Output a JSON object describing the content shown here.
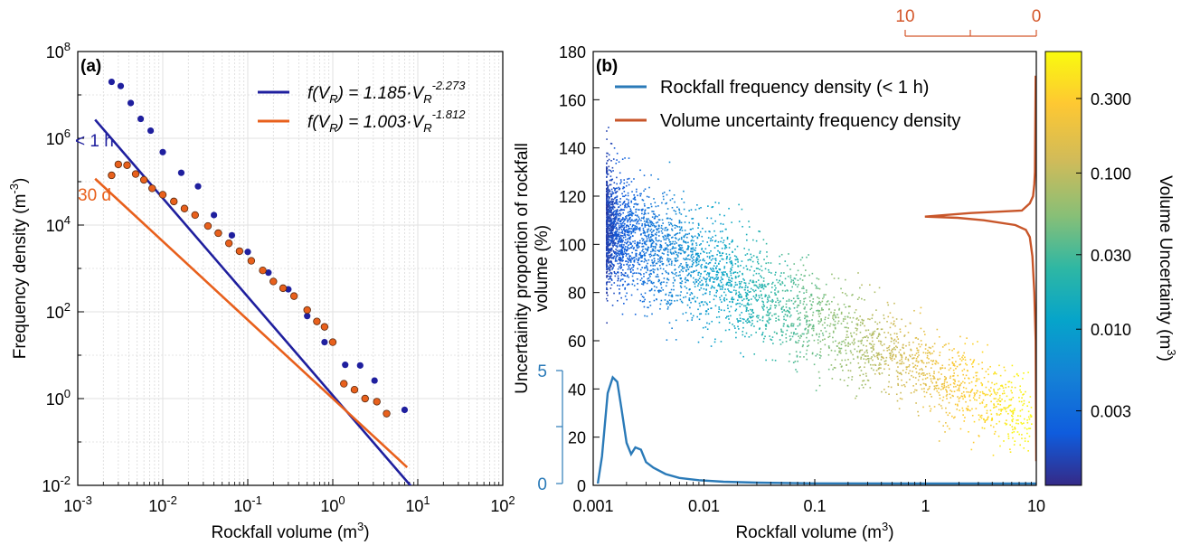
{
  "chart_data": [
    {
      "type": "scatter",
      "panel_label": "(a)",
      "xlabel": "Rockfall volume (m",
      "xlabel_sup": "3",
      "xlabel_end": ")",
      "ylabel": "Frequency density (m",
      "ylabel_sup": "-3",
      "ylabel_end": ")",
      "x_scale": "log",
      "y_scale": "log",
      "xlim": [
        0.001,
        100
      ],
      "ylim": [
        0.01,
        100000000
      ],
      "x_ticks": [
        {
          "value": 0.001,
          "base": "10",
          "exp": "-3"
        },
        {
          "value": 0.01,
          "base": "10",
          "exp": "-2"
        },
        {
          "value": 0.1,
          "base": "10",
          "exp": "-1"
        },
        {
          "value": 1,
          "base": "10",
          "exp": "0"
        },
        {
          "value": 10,
          "base": "10",
          "exp": "1"
        },
        {
          "value": 100,
          "base": "10",
          "exp": "2"
        }
      ],
      "y_ticks": [
        {
          "value": 0.01,
          "base": "10",
          "exp": "-2"
        },
        {
          "value": 1,
          "base": "10",
          "exp": "0"
        },
        {
          "value": 100,
          "base": "10",
          "exp": "2"
        },
        {
          "value": 10000,
          "base": "10",
          "exp": "4"
        },
        {
          "value": 1000000,
          "base": "10",
          "exp": "6"
        },
        {
          "value": 100000000,
          "base": "10",
          "exp": "8"
        }
      ],
      "grid": true,
      "legend_position": "top-right",
      "legend": [
        {
          "pre": "f(V",
          "sub": "R",
          "mid": ") = 1.185·V",
          "sub2": "R",
          "sup": "-2.273",
          "color": "#1f1f9e"
        },
        {
          "pre": "f(V",
          "sub": "R",
          "mid": ") = 1.003·V",
          "sub2": "R",
          "sup": "-1.812",
          "color": "#e8601c"
        }
      ],
      "annotations": [
        "< 1 h",
        "30 d"
      ],
      "series": [
        {
          "annotation": "< 1 h",
          "color": "#1f1f9e",
          "fit": {
            "a": 1.185,
            "b": -2.273,
            "x_range": [
              0.0016,
              10.5
            ]
          },
          "points": [
            [
              0.0025,
              20000000
            ],
            [
              0.0032,
              16000000
            ],
            [
              0.0042,
              6500000
            ],
            [
              0.0055,
              2800000
            ],
            [
              0.0072,
              1500000
            ],
            [
              0.01,
              480000
            ],
            [
              0.0165,
              160000
            ],
            [
              0.026,
              78000
            ],
            [
              0.04,
              17000
            ],
            [
              0.065,
              5800
            ],
            [
              0.1,
              2400
            ],
            [
              0.175,
              800
            ],
            [
              0.3,
              330
            ],
            [
              0.5,
              80
            ],
            [
              0.8,
              20
            ],
            [
              1.4,
              6
            ],
            [
              2.1,
              5.8
            ],
            [
              3.1,
              2.6
            ],
            [
              7.0,
              0.55
            ]
          ]
        },
        {
          "annotation": "30 d",
          "color": "#e8601c",
          "fit": {
            "a": 1.003,
            "b": -1.812,
            "x_range": [
              0.0016,
              7.5
            ]
          },
          "points": [
            [
              0.0025,
              140000
            ],
            [
              0.003,
              250000
            ],
            [
              0.0038,
              240000
            ],
            [
              0.0048,
              150000
            ],
            [
              0.006,
              110000
            ],
            [
              0.0075,
              70000
            ],
            [
              0.01,
              50000
            ],
            [
              0.0135,
              35000
            ],
            [
              0.018,
              24000
            ],
            [
              0.024,
              17000
            ],
            [
              0.034,
              9500
            ],
            [
              0.045,
              6500
            ],
            [
              0.06,
              3800
            ],
            [
              0.08,
              2500
            ],
            [
              0.11,
              1500
            ],
            [
              0.15,
              900
            ],
            [
              0.2,
              500
            ],
            [
              0.26,
              350
            ],
            [
              0.35,
              230
            ],
            [
              0.5,
              110
            ],
            [
              0.65,
              60
            ],
            [
              0.8,
              45
            ],
            [
              1.0,
              20
            ],
            [
              1.35,
              2.2
            ],
            [
              1.8,
              1.6
            ],
            [
              2.4,
              1.0
            ],
            [
              3.3,
              0.85
            ],
            [
              4.3,
              0.45
            ]
          ]
        }
      ]
    },
    {
      "type": "scatter",
      "panel_label": "(b)",
      "xlabel": "Rockfall volume (m",
      "xlabel_sup": "3",
      "xlabel_end": ")",
      "ylabel_line1": "Uncertainity proportion of rockfall",
      "ylabel_line2": "volume (%)",
      "x_scale": "log",
      "xlim": [
        0.001,
        10
      ],
      "ylim": [
        0,
        180
      ],
      "x_tick_labels": [
        "0.001",
        "0.01",
        "0.1",
        "1",
        "10"
      ],
      "y_tick_labels": [
        "0",
        "20",
        "40",
        "60",
        "80",
        "100",
        "120",
        "140",
        "160",
        "180"
      ],
      "colorbar": {
        "label": "Volume Uncertainty (m",
        "label_sup": "3",
        "label_end": ")",
        "scale": "log",
        "range": [
          0.001,
          0.6
        ],
        "colormap": "parula",
        "tick_labels": [
          "0.003",
          "0.010",
          "0.030",
          "0.100",
          "0.300"
        ]
      },
      "top_axis": {
        "color": "#d4572b",
        "tick_labels": [
          "10",
          "0"
        ]
      },
      "left_inset_axis": {
        "color": "#2a7ab8",
        "tick_labels": [
          "5",
          "0"
        ]
      },
      "legend_position": "top-left",
      "legend": [
        {
          "label": "Rockfall frequency density (< 1 h)",
          "color": "#2a7ab8"
        },
        {
          "label": "Volume uncertainty frequency density",
          "color": "#c8562a"
        }
      ],
      "series": [
        {
          "name": "Rockfall frequency density (< 1 h)",
          "color": "#2a7ab8",
          "x": [
            0.0011,
            0.0012,
            0.00135,
            0.0015,
            0.00165,
            0.0018,
            0.002,
            0.0022,
            0.0024,
            0.0027,
            0.003,
            0.0035,
            0.0045,
            0.006,
            0.009,
            0.015,
            0.03,
            0.1,
            1,
            10
          ],
          "y_scaled": [
            0.0,
            1.2,
            4.0,
            4.7,
            4.5,
            3.3,
            1.8,
            1.3,
            1.6,
            1.5,
            0.95,
            0.7,
            0.42,
            0.25,
            0.15,
            0.08,
            0.04,
            0.01,
            0.0,
            0.0
          ]
        },
        {
          "name": "Volume uncertainty frequency density",
          "color": "#c8562a",
          "y": [
            170,
            130,
            125,
            120,
            117,
            114,
            113,
            111.5,
            111,
            110,
            108,
            106,
            103,
            95,
            80,
            60,
            10
          ],
          "x_scaled": [
            0.05,
            0.1,
            0.15,
            0.25,
            0.5,
            1.1,
            5.0,
            8.5,
            6.0,
            4.0,
            1.6,
            0.8,
            0.5,
            0.3,
            0.15,
            0.05,
            0.0
          ]
        }
      ]
    }
  ]
}
